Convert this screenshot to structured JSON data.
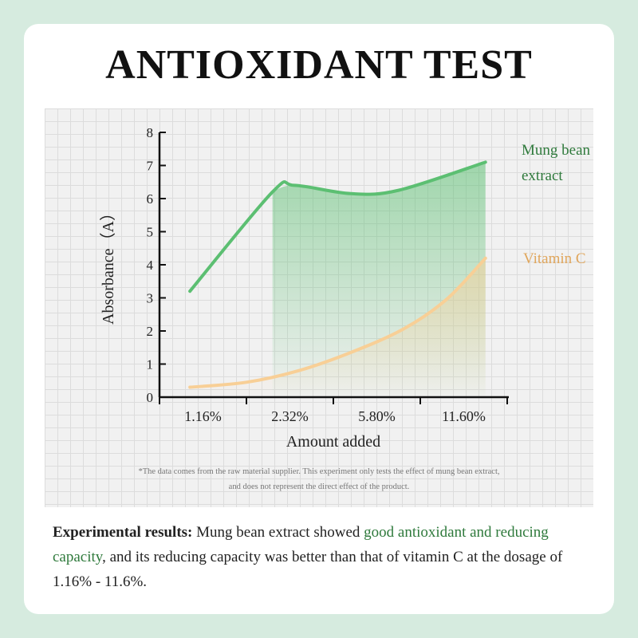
{
  "header": {
    "title": "ANTIOXIDANT TEST"
  },
  "chart_data": {
    "type": "area",
    "categories": [
      "1.16%",
      "2.32%",
      "5.80%",
      "11.60%"
    ],
    "xlabel": "Amount added",
    "ylabel": "Absorbance（A）",
    "ylim": [
      0,
      8
    ],
    "yticks": [
      0,
      1,
      2,
      3,
      4,
      5,
      6,
      7,
      8
    ],
    "grid": true,
    "series": [
      {
        "name": "Mung bean extract",
        "label_lines": [
          "Mung bean",
          "extract"
        ],
        "color": "#5cbf72",
        "x": [
          0.35,
          1.3,
          1.55,
          2.2,
          2.75,
          3.75
        ],
        "y": [
          3.2,
          6.2,
          6.4,
          6.15,
          6.25,
          7.1
        ]
      },
      {
        "name": "Vitamin C",
        "label_lines": [
          "Vitamin C"
        ],
        "color": "#f8cf96",
        "x": [
          0.35,
          1.0,
          1.6,
          2.2,
          2.8,
          3.3,
          3.75
        ],
        "y": [
          0.3,
          0.45,
          0.8,
          1.35,
          2.05,
          2.95,
          4.2
        ]
      }
    ]
  },
  "footnote": {
    "line1": "*The data comes from the raw material supplier. This experiment only tests the effect of mung bean extract,",
    "line2": "and does not represent the direct effect of the product."
  },
  "results": {
    "lead": "Experimental results:",
    "text1": " Mung bean extract showed ",
    "highlight": "good antioxidant and reducing capacity",
    "text2": ", and its reducing capacity was better than that of vitamin C at the dosage of 1.16% - 11.6%."
  },
  "colors": {
    "background": "#d6ebdf",
    "card": "#ffffff",
    "highlight": "#2f7a3c",
    "mung_label": "#2f7a3c",
    "vitc_label": "#e0a65c"
  }
}
